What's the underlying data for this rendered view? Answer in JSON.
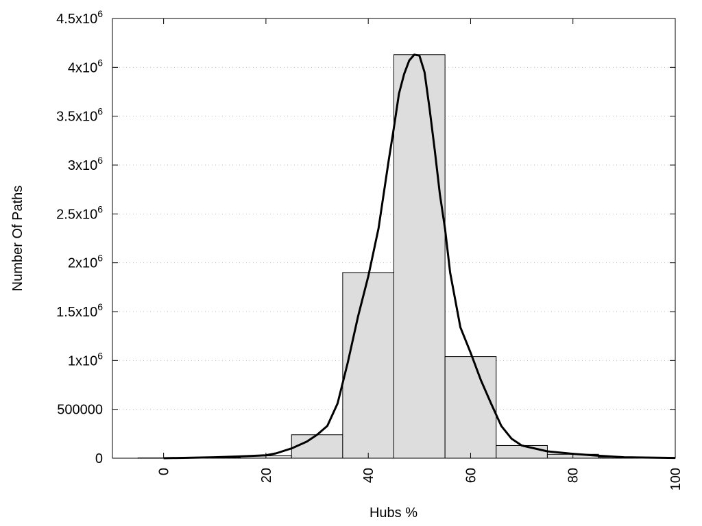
{
  "chart_data": {
    "type": "bar",
    "xlabel": "Hubs %",
    "ylabel": "Number Of Paths",
    "xlim": [
      -10,
      100
    ],
    "ylim": [
      0,
      4500000
    ],
    "grid": "horizontal dotted",
    "bar_color": "#dddddd",
    "x_ticks": [
      {
        "value": 0,
        "label": "0"
      },
      {
        "value": 20,
        "label": "20"
      },
      {
        "value": 40,
        "label": "40"
      },
      {
        "value": 60,
        "label": "60"
      },
      {
        "value": 80,
        "label": "80"
      },
      {
        "value": 100,
        "label": "100"
      }
    ],
    "y_ticks": [
      {
        "value": 0,
        "mantissa": "0",
        "exp": ""
      },
      {
        "value": 500000,
        "mantissa": "500000",
        "exp": ""
      },
      {
        "value": 1000000,
        "mantissa": "1x10",
        "exp": "6"
      },
      {
        "value": 1500000,
        "mantissa": "1.5x10",
        "exp": "6"
      },
      {
        "value": 2000000,
        "mantissa": "2x10",
        "exp": "6"
      },
      {
        "value": 2500000,
        "mantissa": "2.5x10",
        "exp": "6"
      },
      {
        "value": 3000000,
        "mantissa": "3x10",
        "exp": "6"
      },
      {
        "value": 3500000,
        "mantissa": "3.5x10",
        "exp": "6"
      },
      {
        "value": 4000000,
        "mantissa": "4x10",
        "exp": "6"
      },
      {
        "value": 4500000,
        "mantissa": "4.5x10",
        "exp": "6"
      }
    ],
    "bars": [
      {
        "x": 0,
        "value": 3000
      },
      {
        "x": 10,
        "value": 6000
      },
      {
        "x": 20,
        "value": 25000
      },
      {
        "x": 30,
        "value": 240000
      },
      {
        "x": 40,
        "value": 1900000
      },
      {
        "x": 50,
        "value": 4130000
      },
      {
        "x": 60,
        "value": 1040000
      },
      {
        "x": 70,
        "value": 130000
      },
      {
        "x": 80,
        "value": 40000
      },
      {
        "x": 90,
        "value": 10000
      }
    ],
    "bin_width": 10,
    "series": [
      {
        "type": "line",
        "x": [
          0,
          10,
          15,
          20,
          22,
          25,
          28,
          30,
          32,
          34,
          36,
          38,
          40,
          42,
          44,
          45,
          46,
          47,
          48,
          49,
          50,
          51,
          52,
          53,
          54,
          55,
          56,
          58,
          60,
          62,
          64,
          66,
          68,
          70,
          75,
          80,
          85,
          90,
          95,
          100
        ],
        "y": [
          0,
          10000,
          18000,
          30000,
          50000,
          100000,
          170000,
          240000,
          330000,
          560000,
          980000,
          1450000,
          1860000,
          2350000,
          3050000,
          3380000,
          3730000,
          3930000,
          4070000,
          4130000,
          4120000,
          3950000,
          3570000,
          3150000,
          2700000,
          2350000,
          1900000,
          1340000,
          1080000,
          800000,
          560000,
          330000,
          200000,
          130000,
          70000,
          45000,
          25000,
          10000,
          6000,
          3000
        ]
      }
    ]
  }
}
